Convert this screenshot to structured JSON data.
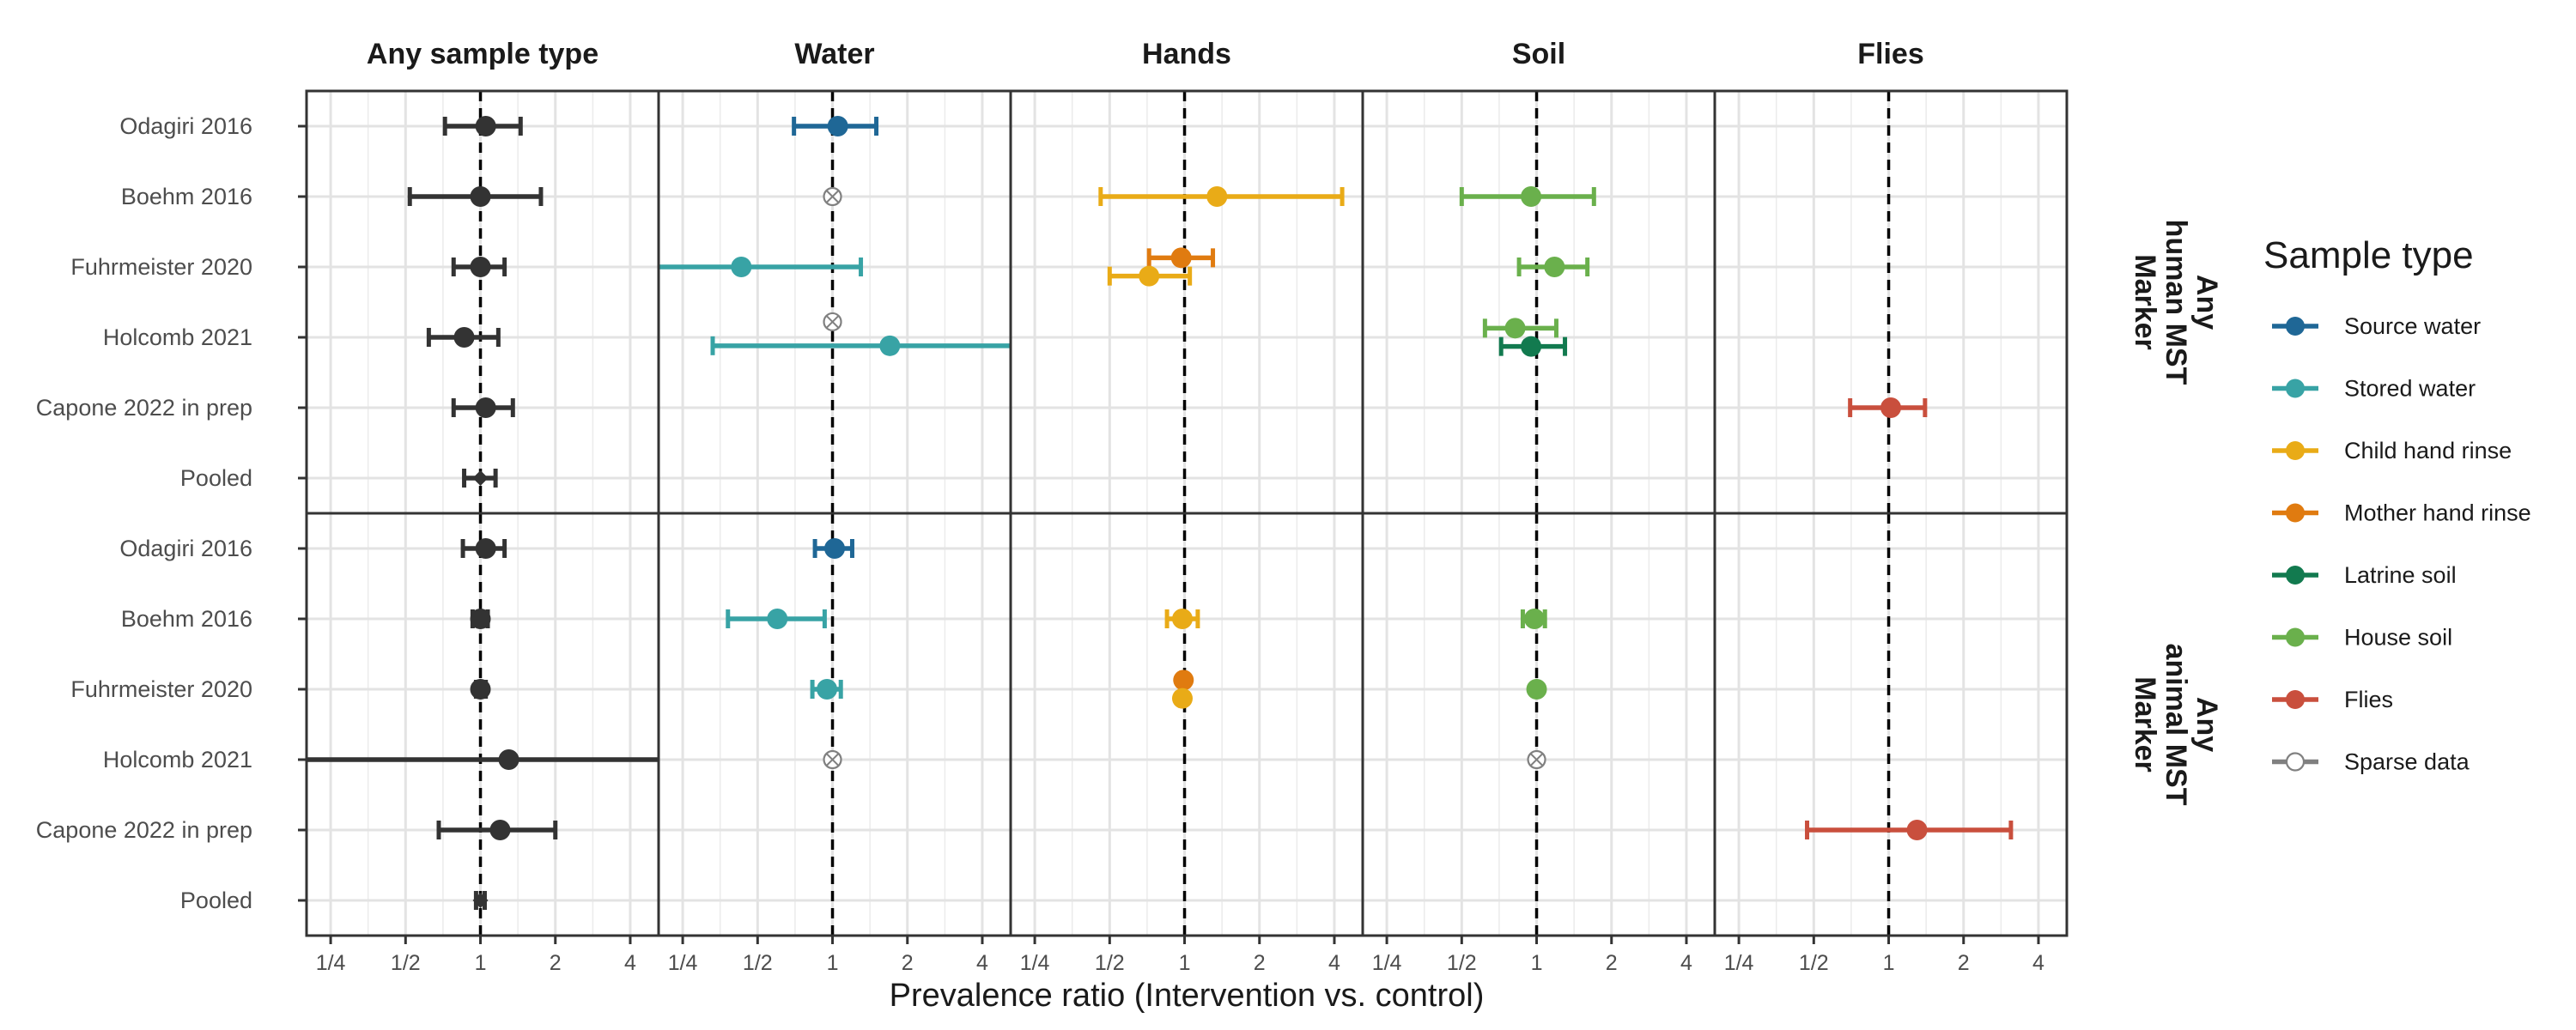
{
  "chart_data": {
    "type": "forest",
    "xlabel": "Prevalence ratio (Intervention vs. control)",
    "x_scale": "log2",
    "xlim": [
      0.2,
      5.2
    ],
    "x_ticks": [
      {
        "value": 0.25,
        "label": "1/4"
      },
      {
        "value": 0.5,
        "label": "1/2"
      },
      {
        "value": 1,
        "label": "1"
      },
      {
        "value": 2,
        "label": "2"
      },
      {
        "value": 4,
        "label": "4"
      }
    ],
    "reference_line": 1,
    "grid": true,
    "columns": [
      "Any sample type",
      "Water",
      "Hands",
      "Soil",
      "Flies"
    ],
    "rows": [
      {
        "label": "Any\nhuman MST\nMarker"
      },
      {
        "label": "Any\nanimal MST\nMarker"
      }
    ],
    "studies": [
      "Odagiri 2016",
      "Boehm 2016",
      "Fuhrmeister 2020",
      "Holcomb 2021",
      "Capone 2022 in prep",
      "Pooled"
    ],
    "legend": {
      "title": "Sample type",
      "position": "right",
      "items": [
        {
          "key": "source_water",
          "label": "Source water",
          "color": "#1f6796"
        },
        {
          "key": "stored_water",
          "label": "Stored water",
          "color": "#38a3a5"
        },
        {
          "key": "child_hand",
          "label": "Child hand rinse",
          "color": "#e9ab17"
        },
        {
          "key": "mother_hand",
          "label": "Mother hand rinse",
          "color": "#e07b10"
        },
        {
          "key": "latrine_soil",
          "label": "Latrine soil",
          "color": "#127a4f"
        },
        {
          "key": "house_soil",
          "label": "House soil",
          "color": "#6ab04c"
        },
        {
          "key": "flies",
          "label": "Flies",
          "color": "#c94f3d"
        },
        {
          "key": "sparse",
          "label": "Sparse data",
          "color": "#808080"
        }
      ]
    },
    "colors": {
      "overall": "#333333"
    },
    "points": [
      {
        "col": 0,
        "row": 0,
        "study": 0,
        "type": "overall",
        "est": 1.05,
        "lo": 0.72,
        "hi": 1.45
      },
      {
        "col": 0,
        "row": 0,
        "study": 1,
        "type": "overall",
        "est": 1.0,
        "lo": 0.52,
        "hi": 1.75
      },
      {
        "col": 0,
        "row": 0,
        "study": 2,
        "type": "overall",
        "est": 1.0,
        "lo": 0.78,
        "hi": 1.25
      },
      {
        "col": 0,
        "row": 0,
        "study": 3,
        "type": "overall",
        "est": 0.86,
        "lo": 0.62,
        "hi": 1.18
      },
      {
        "col": 0,
        "row": 0,
        "study": 4,
        "type": "overall",
        "est": 1.05,
        "lo": 0.78,
        "hi": 1.35
      },
      {
        "col": 0,
        "row": 0,
        "study": 5,
        "type": "overall",
        "est": 1.0,
        "lo": 0.86,
        "hi": 1.15,
        "pooled": true
      },
      {
        "col": 0,
        "row": 1,
        "study": 0,
        "type": "overall",
        "est": 1.05,
        "lo": 0.85,
        "hi": 1.25
      },
      {
        "col": 0,
        "row": 1,
        "study": 1,
        "type": "overall",
        "est": 1.0,
        "lo": 0.93,
        "hi": 1.07
      },
      {
        "col": 0,
        "row": 1,
        "study": 2,
        "type": "overall",
        "est": 1.0,
        "lo": 0.96,
        "hi": 1.05
      },
      {
        "col": 0,
        "row": 1,
        "study": 3,
        "type": "overall",
        "est": 1.3,
        "lo": 0.2,
        "hi": 5.2
      },
      {
        "col": 0,
        "row": 1,
        "study": 4,
        "type": "overall",
        "est": 1.2,
        "lo": 0.68,
        "hi": 2.0
      },
      {
        "col": 0,
        "row": 1,
        "study": 5,
        "type": "overall",
        "est": 1.0,
        "lo": 0.96,
        "hi": 1.04,
        "pooled": true
      },
      {
        "col": 1,
        "row": 0,
        "study": 0,
        "type": "source_water",
        "est": 1.05,
        "lo": 0.7,
        "hi": 1.5
      },
      {
        "col": 1,
        "row": 0,
        "study": 1,
        "type": "sparse",
        "est": 1.0,
        "sparse": true
      },
      {
        "col": 1,
        "row": 0,
        "study": 2,
        "type": "stored_water",
        "est": 0.43,
        "lo": 0.2,
        "hi": 1.3,
        "offset": 0
      },
      {
        "col": 1,
        "row": 0,
        "study": 3,
        "type": "sparse",
        "est": 1.0,
        "sparse": true,
        "offset": -0.22
      },
      {
        "col": 1,
        "row": 0,
        "study": 3,
        "type": "stored_water",
        "est": 1.7,
        "lo": 0.33,
        "hi": 5.2,
        "offset": 0.12
      },
      {
        "col": 1,
        "row": 1,
        "study": 0,
        "type": "source_water",
        "est": 1.02,
        "lo": 0.85,
        "hi": 1.2
      },
      {
        "col": 1,
        "row": 1,
        "study": 1,
        "type": "stored_water",
        "est": 0.6,
        "lo": 0.38,
        "hi": 0.93
      },
      {
        "col": 1,
        "row": 1,
        "study": 2,
        "type": "stored_water",
        "est": 0.95,
        "lo": 0.83,
        "hi": 1.08
      },
      {
        "col": 1,
        "row": 1,
        "study": 3,
        "type": "sparse",
        "est": 1.0,
        "sparse": true
      },
      {
        "col": 2,
        "row": 0,
        "study": 1,
        "type": "child_hand",
        "est": 1.35,
        "lo": 0.46,
        "hi": 4.3
      },
      {
        "col": 2,
        "row": 0,
        "study": 2,
        "type": "mother_hand",
        "est": 0.97,
        "lo": 0.72,
        "hi": 1.3,
        "offset": -0.13
      },
      {
        "col": 2,
        "row": 0,
        "study": 2,
        "type": "child_hand",
        "est": 0.72,
        "lo": 0.5,
        "hi": 1.05,
        "offset": 0.13
      },
      {
        "col": 2,
        "row": 1,
        "study": 1,
        "type": "child_hand",
        "est": 0.98,
        "lo": 0.85,
        "hi": 1.13
      },
      {
        "col": 2,
        "row": 1,
        "study": 2,
        "type": "mother_hand",
        "est": 0.99,
        "lo": 0.97,
        "hi": 1.01,
        "offset": -0.13
      },
      {
        "col": 2,
        "row": 1,
        "study": 2,
        "type": "child_hand",
        "est": 0.98,
        "lo": 0.96,
        "hi": 1.0,
        "offset": 0.13
      },
      {
        "col": 3,
        "row": 0,
        "study": 1,
        "type": "house_soil",
        "est": 0.95,
        "lo": 0.5,
        "hi": 1.7
      },
      {
        "col": 3,
        "row": 0,
        "study": 2,
        "type": "house_soil",
        "est": 1.18,
        "lo": 0.85,
        "hi": 1.6
      },
      {
        "col": 3,
        "row": 0,
        "study": 3,
        "type": "house_soil",
        "est": 0.82,
        "lo": 0.62,
        "hi": 1.2,
        "offset": -0.13
      },
      {
        "col": 3,
        "row": 0,
        "study": 3,
        "type": "latrine_soil",
        "est": 0.95,
        "lo": 0.72,
        "hi": 1.3,
        "offset": 0.13
      },
      {
        "col": 3,
        "row": 1,
        "study": 1,
        "type": "house_soil",
        "est": 0.98,
        "lo": 0.88,
        "hi": 1.08
      },
      {
        "col": 3,
        "row": 1,
        "study": 2,
        "type": "house_soil",
        "est": 1.0,
        "lo": 0.98,
        "hi": 1.02
      },
      {
        "col": 3,
        "row": 1,
        "study": 3,
        "type": "sparse",
        "est": 1.0,
        "sparse": true
      },
      {
        "col": 4,
        "row": 0,
        "study": 4,
        "type": "flies",
        "est": 1.02,
        "lo": 0.7,
        "hi": 1.4
      },
      {
        "col": 4,
        "row": 1,
        "study": 4,
        "type": "flies",
        "est": 1.3,
        "lo": 0.47,
        "hi": 3.1
      }
    ]
  }
}
